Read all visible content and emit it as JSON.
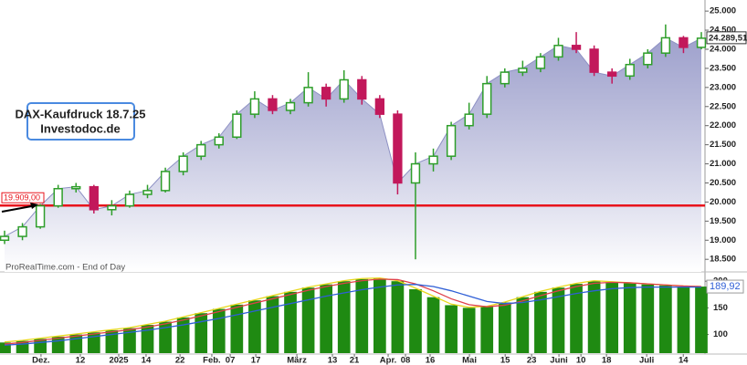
{
  "chart_data": {
    "type": "candlestick",
    "title": "DAX-Kaufdruck 18.7.25",
    "subtitle": "Investodoc.de",
    "source": "ProRealTime.com - End of Day",
    "price": {
      "open": [
        19000,
        19100,
        19350,
        19900,
        20350,
        20400,
        19800,
        19900,
        20200,
        20300,
        20800,
        21200,
        21500,
        21700,
        22300,
        22700,
        22400,
        22600,
        23000,
        22700,
        23200,
        22700,
        22300,
        20500,
        21000,
        21200,
        22000,
        22300,
        23100,
        23400,
        23500,
        23800,
        24100,
        24000,
        23400,
        23300,
        23600,
        23900,
        24300,
        24050
      ],
      "high": [
        19250,
        19450,
        19950,
        20450,
        20500,
        20450,
        20050,
        20300,
        20450,
        20900,
        21300,
        21600,
        21800,
        22400,
        22900,
        22800,
        22700,
        23400,
        23100,
        23450,
        23300,
        22800,
        22400,
        21300,
        21400,
        22100,
        22600,
        23300,
        23500,
        23700,
        23900,
        24300,
        24450,
        24100,
        23500,
        23750,
        24000,
        24650,
        24350,
        24450
      ],
      "low": [
        18900,
        19000,
        19300,
        19850,
        20250,
        19700,
        19650,
        19850,
        20100,
        20250,
        20700,
        21100,
        21400,
        21650,
        22200,
        22300,
        22300,
        22500,
        22500,
        22600,
        22550,
        22200,
        20200,
        18500,
        20800,
        21100,
        21900,
        22200,
        23000,
        23300,
        23400,
        23700,
        23900,
        23300,
        23100,
        23200,
        23500,
        23800,
        23900,
        24000
      ],
      "close": [
        19100,
        19350,
        19900,
        20350,
        20400,
        19800,
        19900,
        20200,
        20300,
        20800,
        21200,
        21500,
        21700,
        22300,
        22700,
        22400,
        22600,
        23000,
        22700,
        23200,
        22700,
        22300,
        20500,
        21000,
        21200,
        22000,
        22300,
        23100,
        23400,
        23500,
        23800,
        24100,
        24000,
        23400,
        23300,
        23600,
        23900,
        24300,
        24050,
        24289.51
      ],
      "last_label": "24.289,51",
      "up_color": "#2e9e2a",
      "down_color": "#c2185b",
      "area_color": "#8e91c4"
    },
    "ylim": [
      18170,
      25290
    ],
    "yticks": [
      {
        "value": 18500,
        "label": "18.500"
      },
      {
        "value": 19000,
        "label": "19.000"
      },
      {
        "value": 19500,
        "label": "19.500"
      },
      {
        "value": 20000,
        "label": "20.000"
      },
      {
        "value": 20500,
        "label": "20.500"
      },
      {
        "value": 21000,
        "label": "21.000"
      },
      {
        "value": 21500,
        "label": "21.500"
      },
      {
        "value": 22000,
        "label": "22.000"
      },
      {
        "value": 22500,
        "label": "22.500"
      },
      {
        "value": 23000,
        "label": "23.000"
      },
      {
        "value": 23500,
        "label": "23.500"
      },
      {
        "value": 24000,
        "label": "24.000"
      },
      {
        "value": 24500,
        "label": "24.500"
      },
      {
        "value": 25000,
        "label": "25.000"
      }
    ],
    "hline": {
      "value": 19909,
      "label": "19.909,00",
      "color": "#e8141c"
    },
    "xlim": [
      0,
      39
    ],
    "xticks": [
      {
        "value": 2.04,
        "label": "Dez."
      },
      {
        "value": 4.24,
        "label": "12"
      },
      {
        "value": 6.39,
        "label": "2025"
      },
      {
        "value": 7.92,
        "label": "14"
      },
      {
        "value": 9.82,
        "label": "22"
      },
      {
        "value": 11.6,
        "label": "Feb."
      },
      {
        "value": 12.63,
        "label": "07"
      },
      {
        "value": 14.06,
        "label": "17"
      },
      {
        "value": 16.36,
        "label": "März"
      },
      {
        "value": 18.35,
        "label": "13"
      },
      {
        "value": 19.58,
        "label": "21"
      },
      {
        "value": 21.47,
        "label": "Apr."
      },
      {
        "value": 22.44,
        "label": "08"
      },
      {
        "value": 23.82,
        "label": "16"
      },
      {
        "value": 26.02,
        "label": "Mai"
      },
      {
        "value": 28.02,
        "label": "15"
      },
      {
        "value": 29.5,
        "label": "23"
      },
      {
        "value": 31.03,
        "label": "Juni"
      },
      {
        "value": 32.26,
        "label": "10"
      },
      {
        "value": 33.69,
        "label": "18"
      },
      {
        "value": 35.94,
        "label": "Juli"
      },
      {
        "value": 37.99,
        "label": "14"
      }
    ],
    "indicator": {
      "bars": {
        "color": "#1f8a12",
        "values": [
          85,
          88,
          92,
          96,
          100,
          104,
          108,
          112,
          118,
          124,
          132,
          140,
          148,
          156,
          164,
          172,
          180,
          188,
          194,
          200,
          204,
          205,
          200,
          185,
          170,
          155,
          150,
          152,
          160,
          170,
          180,
          188,
          195,
          200,
          198,
          196,
          194,
          192,
          190,
          189.92
        ]
      },
      "series": [
        {
          "color": "#e8d81c",
          "values": [
            86,
            89,
            93,
            97,
            101,
            105,
            109,
            113,
            119,
            125,
            133,
            141,
            149,
            157,
            165,
            173,
            181,
            189,
            195,
            201,
            205,
            206,
            201,
            187,
            172,
            157,
            151,
            153,
            161,
            171,
            181,
            189,
            196,
            201,
            199,
            197,
            195,
            193,
            191,
            190
          ]
        },
        {
          "color": "#e0404a",
          "values": [
            82,
            85,
            89,
            93,
            97,
            101,
            105,
            109,
            114,
            120,
            127,
            135,
            143,
            151,
            159,
            167,
            175,
            183,
            190,
            196,
            201,
            204,
            203,
            195,
            182,
            167,
            156,
            152,
            155,
            163,
            173,
            182,
            190,
            196,
            198,
            197,
            195,
            193,
            191,
            190
          ]
        },
        {
          "color": "#2f5fd6",
          "values": [
            80,
            82,
            85,
            88,
            92,
            96,
            100,
            104,
            108,
            113,
            118,
            124,
            130,
            137,
            144,
            151,
            158,
            165,
            172,
            178,
            184,
            189,
            193,
            194,
            190,
            182,
            172,
            162,
            158,
            160,
            165,
            171,
            177,
            182,
            186,
            188,
            189,
            189,
            189,
            189
          ]
        }
      ],
      "last_label": "189,92",
      "ylim": [
        65,
        214
      ],
      "yticks": [
        100,
        150,
        200
      ]
    }
  }
}
